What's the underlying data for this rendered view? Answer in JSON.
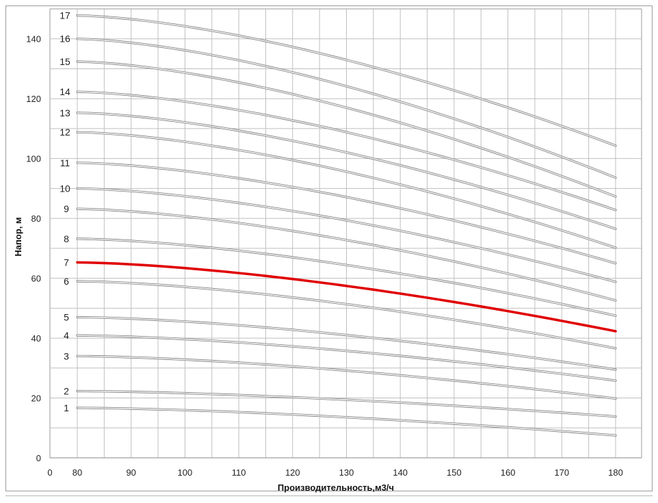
{
  "chart_data": {
    "type": "line",
    "xlabel": "Производительность,м3/ч",
    "ylabel": "Напор, м",
    "xlim": [
      0,
      180
    ],
    "ylim": [
      0,
      150
    ],
    "x_ticks": [
      0,
      80,
      90,
      100,
      110,
      120,
      130,
      140,
      150,
      160,
      170,
      180
    ],
    "y_ticks": [
      0,
      20,
      40,
      60,
      80,
      100,
      120,
      140
    ],
    "grid": true,
    "highlight_color": "#e00000",
    "line_color": "#bdbdbd",
    "series": [
      {
        "name": "1",
        "x": [
          80,
          180
        ],
        "y": [
          16.7,
          7.5
        ],
        "highlight": false
      },
      {
        "name": "2",
        "x": [
          80,
          180
        ],
        "y": [
          22.3,
          13.8
        ],
        "highlight": false
      },
      {
        "name": "3",
        "x": [
          80,
          180
        ],
        "y": [
          34.0,
          19.8
        ],
        "highlight": false
      },
      {
        "name": "4",
        "x": [
          80,
          180
        ],
        "y": [
          40.9,
          25.8
        ],
        "highlight": false
      },
      {
        "name": "5",
        "x": [
          80,
          180
        ],
        "y": [
          47.0,
          29.5
        ],
        "highlight": false
      },
      {
        "name": "6",
        "x": [
          80,
          180
        ],
        "y": [
          59.0,
          36.6
        ],
        "highlight": false
      },
      {
        "name": "7",
        "x": [
          80,
          180
        ],
        "y": [
          65.3,
          42.3
        ],
        "highlight": true
      },
      {
        "name": "8",
        "x": [
          80,
          180
        ],
        "y": [
          73.2,
          47.5
        ],
        "highlight": false
      },
      {
        "name": "9",
        "x": [
          80,
          180
        ],
        "y": [
          83.2,
          52.6
        ],
        "highlight": false
      },
      {
        "name": "10",
        "x": [
          80,
          180
        ],
        "y": [
          90.0,
          58.8
        ],
        "highlight": false
      },
      {
        "name": "11",
        "x": [
          80,
          180
        ],
        "y": [
          98.6,
          65.0
        ],
        "highlight": false
      },
      {
        "name": "12",
        "x": [
          80,
          180
        ],
        "y": [
          108.8,
          70.2
        ],
        "highlight": false
      },
      {
        "name": "13",
        "x": [
          80,
          180
        ],
        "y": [
          115.3,
          76.5
        ],
        "highlight": false
      },
      {
        "name": "14",
        "x": [
          80,
          180
        ],
        "y": [
          122.3,
          82.8
        ],
        "highlight": false
      },
      {
        "name": "15",
        "x": [
          80,
          180
        ],
        "y": [
          132.4,
          87.3
        ],
        "highlight": false
      },
      {
        "name": "16",
        "x": [
          80,
          180
        ],
        "y": [
          140.0,
          93.6
        ],
        "highlight": false
      },
      {
        "name": "17",
        "x": [
          80,
          180
        ],
        "y": [
          147.8,
          104.3
        ],
        "highlight": false
      }
    ]
  }
}
